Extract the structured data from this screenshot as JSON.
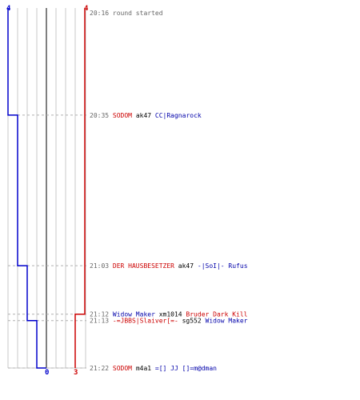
{
  "chart_data": {
    "type": "line",
    "team_colors": {
      "left": "#0000cc",
      "right": "#cc0000",
      "neutral": "#000000",
      "muted": "#666666"
    },
    "scores": {
      "left": {
        "start": "4",
        "end": "0"
      },
      "right": {
        "start": "4",
        "end": "3"
      }
    },
    "events": [
      {
        "time": "20:16",
        "minute": 0,
        "left_count": 4,
        "right_count": 4,
        "parts": [
          {
            "text": "round started",
            "color": "gray"
          }
        ]
      },
      {
        "time": "20:35",
        "minute": 19,
        "left_count": 3,
        "right_count": 4,
        "parts": [
          {
            "text": "SODOM",
            "color": "red"
          },
          {
            "text": "ak47",
            "color": "black"
          },
          {
            "text": "CC|Ragnarock",
            "color": "blue"
          }
        ]
      },
      {
        "time": "21:03",
        "minute": 47,
        "left_count": 2,
        "right_count": 4,
        "parts": [
          {
            "text": "DER HAUSBESETZER",
            "color": "red"
          },
          {
            "text": "ak47",
            "color": "black"
          },
          {
            "text": "-|SoI|- Rufus",
            "color": "blue"
          }
        ]
      },
      {
        "time": "21:12",
        "minute": 56,
        "left_count": 2,
        "right_count": 3,
        "parts": [
          {
            "text": "Widow Maker",
            "color": "blue"
          },
          {
            "text": "xm1014",
            "color": "black"
          },
          {
            "text": "Bruder Dark Kill",
            "color": "red"
          }
        ]
      },
      {
        "time": "21:13",
        "minute": 57,
        "left_count": 1,
        "right_count": 3,
        "parts": [
          {
            "text": "-=JBBS|Slaiver[=-",
            "color": "red"
          },
          {
            "text": "sg552",
            "color": "black"
          },
          {
            "text": "Widow Maker",
            "color": "blue"
          }
        ]
      },
      {
        "time": "21:22",
        "minute": 66,
        "left_count": 0,
        "right_count": 3,
        "parts": [
          {
            "text": "SODOM",
            "color": "red"
          },
          {
            "text": "m4a1",
            "color": "black"
          },
          {
            "text": "=[] JJ []=m@dman",
            "color": "blue"
          }
        ]
      }
    ]
  }
}
